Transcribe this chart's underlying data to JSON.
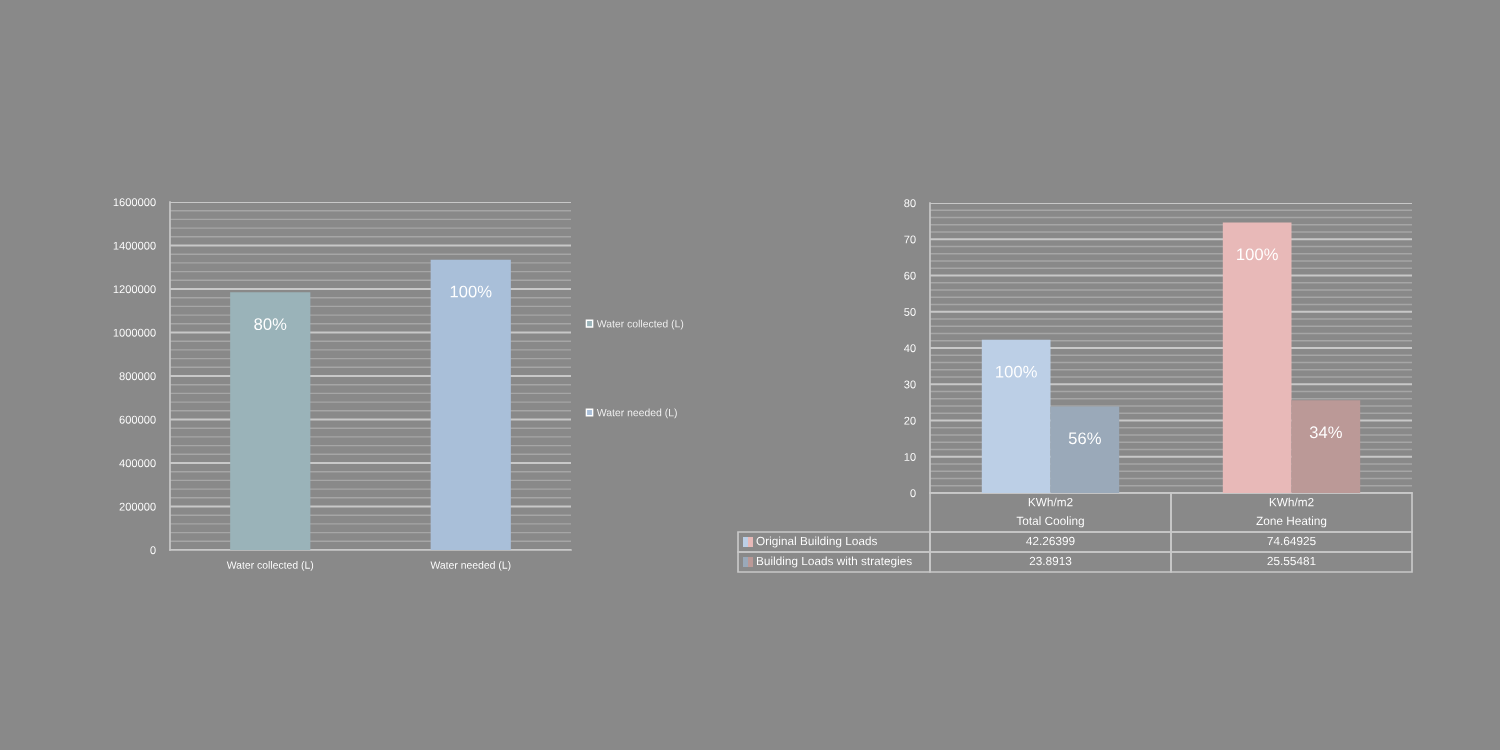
{
  "chart_data": [
    {
      "type": "bar",
      "categories": [
        "Water collected (L)",
        "Water needed (L)"
      ],
      "series": [
        {
          "name": "Water collected (L)",
          "color": "#9ab3b9",
          "values": [
            1185000,
            null
          ]
        },
        {
          "name": "Water needed (L)",
          "color": "#a9bfd9",
          "values": [
            null,
            1335000
          ]
        }
      ],
      "annotations": [
        {
          "text": "80%",
          "x": "Water collected (L)",
          "y": 1185000
        },
        {
          "text": "100%",
          "x": "Water needed (L)",
          "y": 1335000
        }
      ],
      "ylim": [
        0,
        1600000
      ],
      "yticks": [
        0,
        {
          "value": 40000,
          "label": null
        },
        {
          "value": 80000,
          "label": null
        },
        {
          "value": 120000,
          "label": null
        },
        {
          "value": 160000,
          "label": null
        },
        200000,
        {
          "value": 240000,
          "label": null
        },
        {
          "value": 280000,
          "label": null
        },
        {
          "value": 320000,
          "label": null
        },
        {
          "value": 360000,
          "label": null
        },
        400000,
        {
          "value": 440000,
          "label": null
        },
        {
          "value": 480000,
          "label": null
        },
        {
          "value": 520000,
          "label": null
        },
        {
          "value": 560000,
          "label": null
        },
        600000,
        {
          "value": 640000,
          "label": null
        },
        {
          "value": 680000,
          "label": null
        },
        {
          "value": 720000,
          "label": null
        },
        {
          "value": 760000,
          "label": null
        },
        800000,
        {
          "value": 840000,
          "label": null
        },
        {
          "value": 880000,
          "label": null
        },
        {
          "value": 920000,
          "label": null
        },
        {
          "value": 960000,
          "label": null
        },
        1000000,
        {
          "value": 1040000,
          "label": null
        },
        {
          "value": 1080000,
          "label": null
        },
        {
          "value": 1120000,
          "label": null
        },
        {
          "value": 1160000,
          "label": null
        },
        1200000,
        {
          "value": 1240000,
          "label": null
        },
        {
          "value": 1280000,
          "label": null
        },
        {
          "value": 1320000,
          "label": null
        },
        {
          "value": 1360000,
          "label": null
        },
        1400000,
        {
          "value": 1440000,
          "label": null
        },
        {
          "value": 1480000,
          "label": null
        },
        {
          "value": 1520000,
          "label": null
        },
        {
          "value": 1560000,
          "label": null
        },
        1600000
      ],
      "grid": "y",
      "legend": "right"
    },
    {
      "type": "bar",
      "categories": [
        "KWh/m2\nTotal Cooling",
        "KWh/m2\nZone Heating"
      ],
      "series": [
        {
          "name": "Original Building Loads",
          "colors": [
            "#bccfe6",
            "#e8b9b8"
          ],
          "values": [
            42.26399,
            74.64925
          ]
        },
        {
          "name": "Building Loads with strategies",
          "colors": [
            "#9aa9b9",
            "#bb9997"
          ],
          "values": [
            23.8913,
            25.55481
          ]
        }
      ],
      "annotations": [
        {
          "text": "100%",
          "x": "KWh/m2\nTotal Cooling",
          "y": 42.26399
        },
        {
          "text": "56%",
          "x": "KWh/m2\nTotal Cooling",
          "y": 23.8913
        },
        {
          "text": "100%",
          "x": "KWh/m2\nZone Heating",
          "y": 74.64925
        },
        {
          "text": "34%",
          "x": "KWh/m2\nZone Heating",
          "y": 25.55481
        }
      ],
      "ylim": [
        0,
        80
      ],
      "yticks": [
        0,
        {
          "value": 2,
          "label": null
        },
        {
          "value": 4,
          "label": null
        },
        {
          "value": 6,
          "label": null
        },
        {
          "value": 8,
          "label": null
        },
        10,
        {
          "value": 12,
          "label": null
        },
        {
          "value": 14,
          "label": null
        },
        {
          "value": 16,
          "label": null
        },
        {
          "value": 18,
          "label": null
        },
        20,
        {
          "value": 22,
          "label": null
        },
        {
          "value": 24,
          "label": null
        },
        {
          "value": 26,
          "label": null
        },
        {
          "value": 28,
          "label": null
        },
        30,
        {
          "value": 32,
          "label": null
        },
        {
          "value": 34,
          "label": null
        },
        {
          "value": 36,
          "label": null
        },
        {
          "value": 38,
          "label": null
        },
        40,
        {
          "value": 42,
          "label": null
        },
        {
          "value": 44,
          "label": null
        },
        {
          "value": 46,
          "label": null
        },
        {
          "value": 48,
          "label": null
        },
        50,
        {
          "value": 52,
          "label": null
        },
        {
          "value": 54,
          "label": null
        },
        {
          "value": 56,
          "label": null
        },
        {
          "value": 58,
          "label": null
        },
        60,
        {
          "value": 62,
          "label": null
        },
        {
          "value": 64,
          "label": null
        },
        {
          "value": 66,
          "label": null
        },
        {
          "value": 68,
          "label": null
        },
        70,
        {
          "value": 72,
          "label": null
        },
        {
          "value": 74,
          "label": null
        },
        {
          "value": 76,
          "label": null
        },
        {
          "value": 78,
          "label": null
        },
        80
      ],
      "grid": "y",
      "data_labels": true,
      "legend": "bottom left"
    }
  ]
}
